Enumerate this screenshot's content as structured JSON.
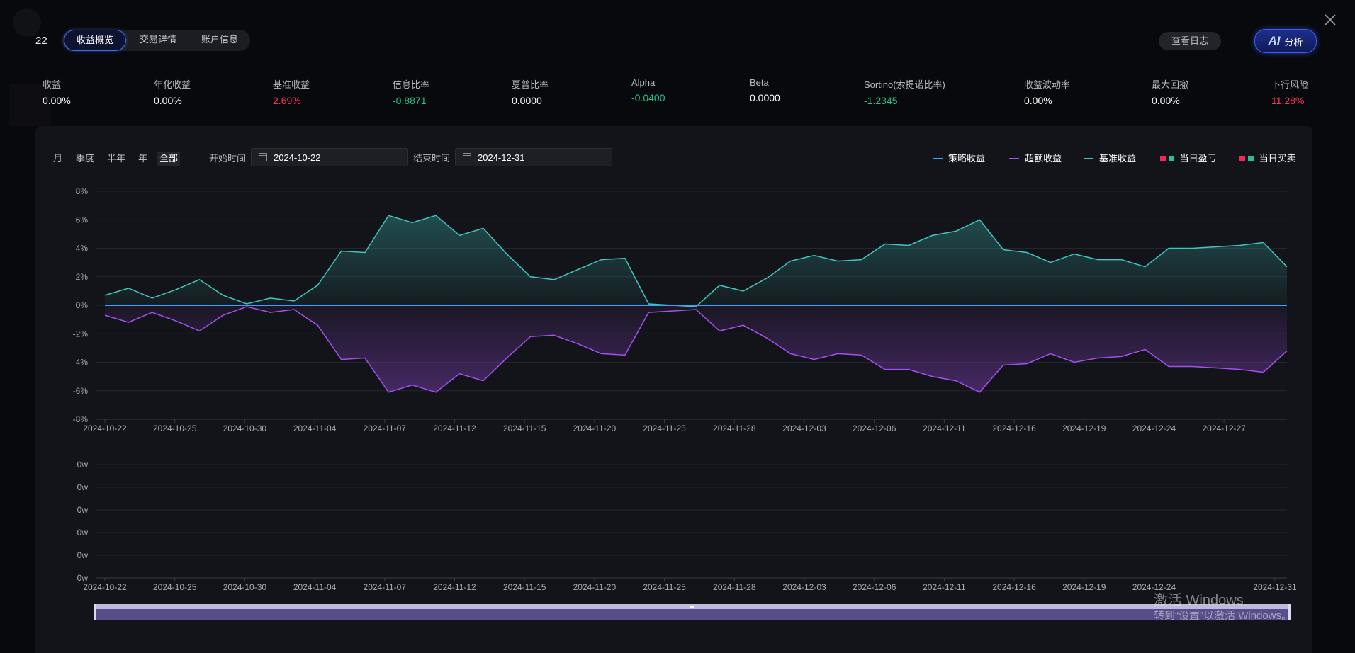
{
  "header": {
    "count": "22",
    "tabs": [
      "收益概览",
      "交易详情",
      "账户信息"
    ],
    "log_button": "查看日志",
    "ai_label": "AI",
    "ai_button": "分析"
  },
  "metrics": [
    {
      "label": "收益",
      "value": "0.00%",
      "tone": "plain"
    },
    {
      "label": "年化收益",
      "value": "0.00%",
      "tone": "plain"
    },
    {
      "label": "基准收益",
      "value": "2.69%",
      "tone": "pos"
    },
    {
      "label": "信息比率",
      "value": "-0.8871",
      "tone": "neg"
    },
    {
      "label": "夏普比率",
      "value": "0.0000",
      "tone": "plain"
    },
    {
      "label": "Alpha",
      "value": "-0.0400",
      "tone": "neg"
    },
    {
      "label": "Beta",
      "value": "0.0000",
      "tone": "plain"
    },
    {
      "label": "Sortino(索提诺比率)",
      "value": "-1.2345",
      "tone": "neg"
    },
    {
      "label": "收益波动率",
      "value": "0.00%",
      "tone": "plain"
    },
    {
      "label": "最大回撤",
      "value": "0.00%",
      "tone": "plain"
    },
    {
      "label": "下行风险",
      "value": "11.28%",
      "tone": "pos"
    }
  ],
  "controls": {
    "periods": [
      "月",
      "季度",
      "半年",
      "年",
      "全部"
    ],
    "active_period": "全部",
    "start_label": "开始时间",
    "start_value": "2024-10-22",
    "end_label": "结束时间",
    "end_value": "2024-12-31"
  },
  "legend": {
    "strategy": "策略收益",
    "excess": "超额收益",
    "benchmark": "基准收益",
    "daily_pnl": "当日盈亏",
    "daily_trade": "当日买卖"
  },
  "colors": {
    "strategy": "#3aa0ff",
    "excess": "#a44ff0",
    "benchmark": "#3ec6c0",
    "up": "#ff2255",
    "down": "#21c48a",
    "accent": "#3d5cf5"
  },
  "chart_data": [
    {
      "type": "line",
      "x_tick_labels": [
        "2024-10-22",
        "2024-10-25",
        "2024-10-30",
        "2024-11-04",
        "2024-11-07",
        "2024-11-12",
        "2024-11-15",
        "2024-11-20",
        "2024-11-25",
        "2024-11-28",
        "2024-12-03",
        "2024-12-06",
        "2024-12-11",
        "2024-12-16",
        "2024-12-19",
        "2024-12-24",
        "2024-12-27"
      ],
      "y_tick_labels": [
        "8%",
        "6%",
        "4%",
        "2%",
        "0%",
        "-2%",
        "-4%",
        "-6%",
        "-8%"
      ],
      "ylim": [
        -8,
        8
      ],
      "grid": true,
      "legend_position": "top-right",
      "series": [
        {
          "name": "基准收益",
          "values": [
            0.7,
            1.2,
            0.5,
            1.1,
            1.8,
            0.7,
            0.1,
            0.5,
            0.3,
            1.4,
            3.8,
            3.7,
            6.3,
            5.8,
            6.3,
            4.9,
            5.4,
            3.6,
            2.0,
            1.8,
            2.5,
            3.2,
            3.3,
            0.1,
            0.0,
            -0.1,
            1.4,
            1.0,
            1.9,
            3.1,
            3.5,
            3.1,
            3.2,
            4.3,
            4.2,
            4.9,
            5.2,
            6.0,
            3.9,
            3.7,
            3.0,
            3.6,
            3.2,
            3.2,
            2.7,
            4.0,
            4.0,
            4.1,
            4.2,
            4.4,
            2.7
          ]
        },
        {
          "name": "超额收益",
          "values": [
            -0.7,
            -1.2,
            -0.5,
            -1.1,
            -1.8,
            -0.7,
            -0.1,
            -0.5,
            -0.3,
            -1.4,
            -3.8,
            -3.7,
            -6.1,
            -5.6,
            -6.1,
            -4.8,
            -5.3,
            -3.7,
            -2.2,
            -2.1,
            -2.7,
            -3.4,
            -3.5,
            -0.5,
            -0.4,
            -0.3,
            -1.8,
            -1.4,
            -2.3,
            -3.4,
            -3.8,
            -3.4,
            -3.5,
            -4.5,
            -4.5,
            -5.0,
            -5.3,
            -6.1,
            -4.2,
            -4.1,
            -3.4,
            -4.0,
            -3.7,
            -3.6,
            -3.1,
            -4.3,
            -4.3,
            -4.4,
            -4.5,
            -4.7,
            -3.2
          ]
        },
        {
          "name": "策略收益",
          "values": [
            0,
            0,
            0,
            0,
            0,
            0,
            0,
            0,
            0,
            0,
            0,
            0,
            0,
            0,
            0,
            0,
            0,
            0,
            0,
            0,
            0,
            0,
            0,
            0,
            0,
            0,
            0,
            0,
            0,
            0,
            0,
            0,
            0,
            0,
            0,
            0,
            0,
            0,
            0,
            0,
            0,
            0,
            0,
            0,
            0,
            0,
            0,
            0,
            0,
            0,
            0
          ]
        }
      ]
    },
    {
      "type": "bar",
      "x_tick_labels": [
        "2024-10-22",
        "2024-10-25",
        "2024-10-30",
        "2024-11-04",
        "2024-11-07",
        "2024-11-12",
        "2024-11-15",
        "2024-11-20",
        "2024-11-25",
        "2024-11-28",
        "2024-12-03",
        "2024-12-06",
        "2024-12-11",
        "2024-12-16",
        "2024-12-19",
        "2024-12-24",
        "2024-12-31"
      ],
      "y_tick_labels": [
        "0w",
        "0w",
        "0w",
        "0w",
        "0w",
        "0w"
      ],
      "grid": true,
      "series": []
    }
  ],
  "watermark": {
    "line1": "激活 Windows",
    "line2": "转到“设置”以激活 Windows。"
  }
}
